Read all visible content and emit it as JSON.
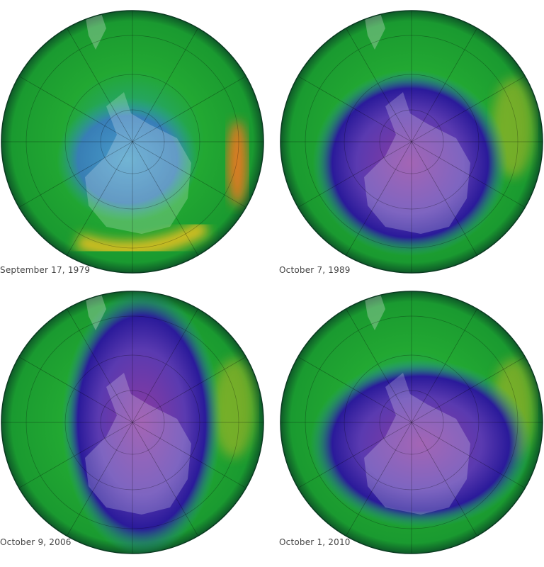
{
  "panels": [
    {
      "date": "September 17, 1979"
    },
    {
      "date": "October 7, 1989"
    },
    {
      "date": "October 9, 2006"
    },
    {
      "date": "October 1, 2010"
    }
  ],
  "colors": {
    "high_ozone": "#e0c020",
    "background_ozone": "#22a832",
    "mid_ozone": "#2aa0a0",
    "low_ozone": "#2a1a9a",
    "hole_center": "#8a3aa0"
  }
}
